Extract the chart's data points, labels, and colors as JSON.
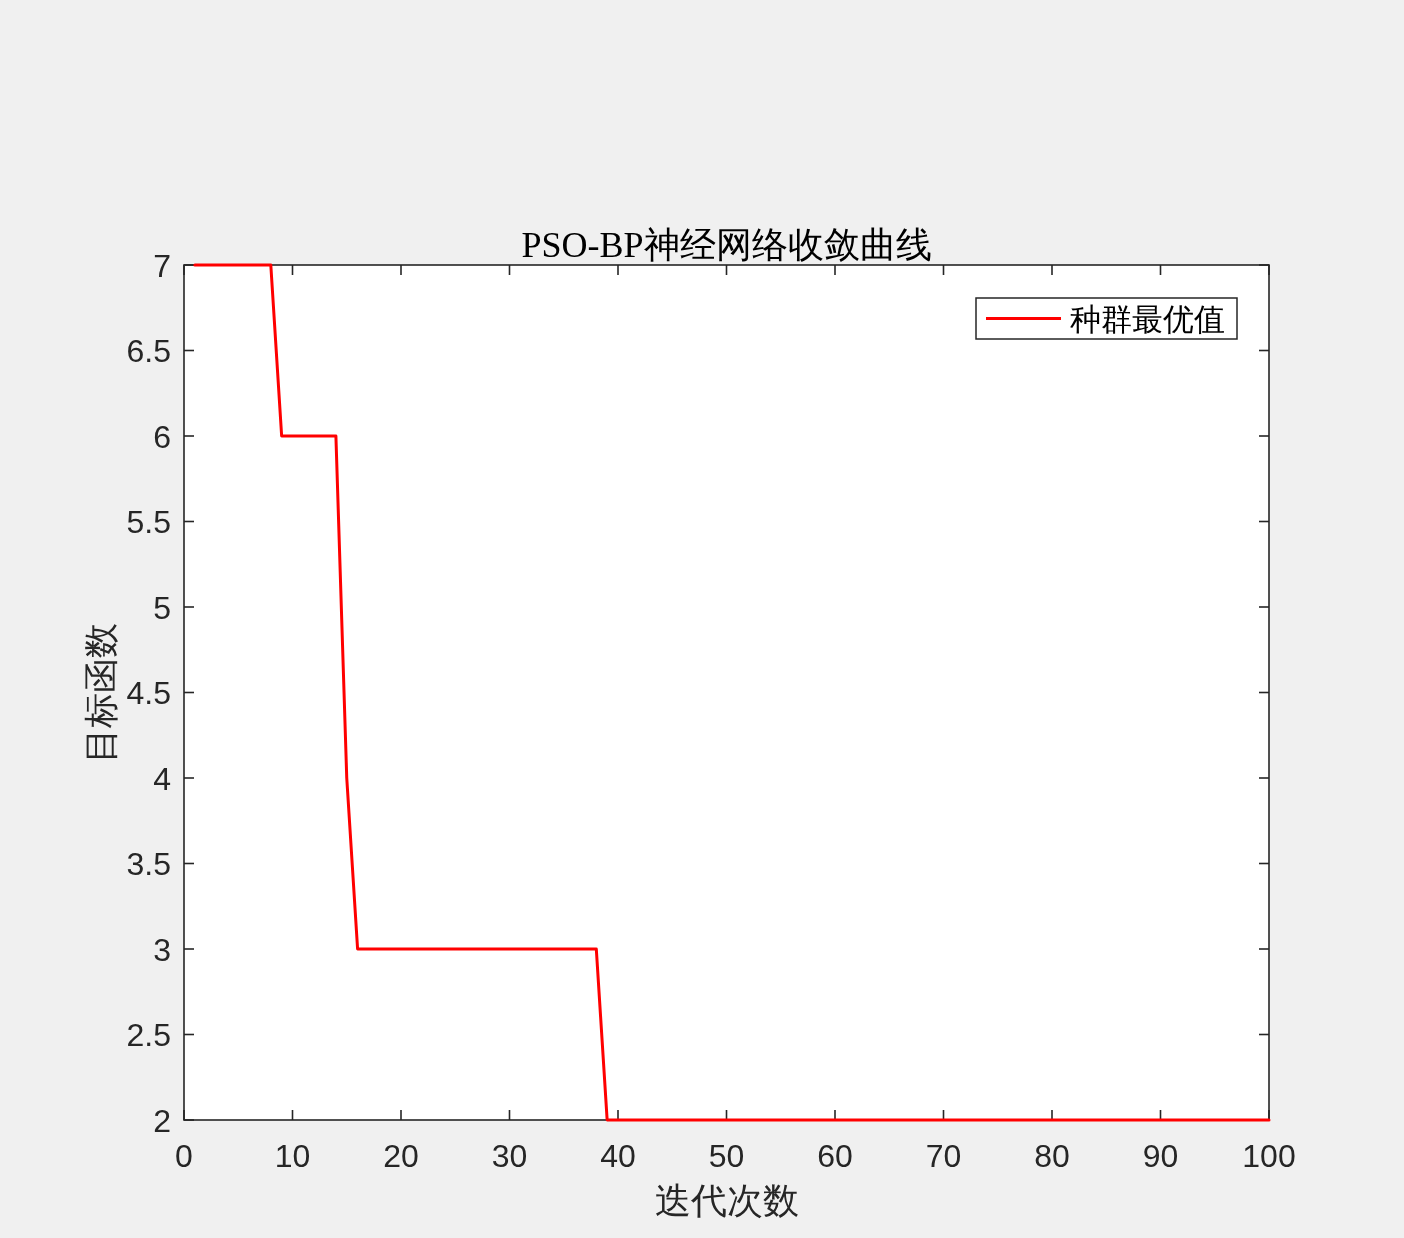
{
  "chart_data": {
    "type": "line",
    "title": "PSO-BP神经网络收敛曲线",
    "xlabel": "迭代次数",
    "ylabel": "目标函数",
    "x": [
      1,
      8,
      9,
      14,
      15,
      16,
      38,
      39,
      100
    ],
    "series": [
      {
        "name": "种群最优值",
        "color": "#ff0000",
        "values": [
          7,
          7,
          6,
          6,
          4,
          3,
          3,
          2,
          2
        ]
      }
    ],
    "xlim": [
      0,
      100
    ],
    "ylim": [
      2,
      7
    ],
    "xticks": [
      0,
      10,
      20,
      30,
      40,
      50,
      60,
      70,
      80,
      90,
      100
    ],
    "yticks": [
      2,
      2.5,
      3,
      3.5,
      4,
      4.5,
      5,
      5.5,
      6,
      6.5,
      7
    ],
    "legend": "top right",
    "line_style": "solid"
  }
}
